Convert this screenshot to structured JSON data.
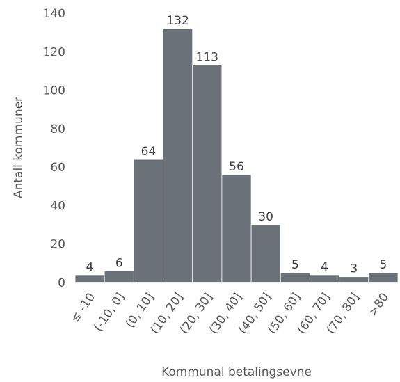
{
  "chart_data": {
    "type": "bar",
    "x_label": "Kommunal betalingsevne",
    "y_label": "Antall kommuner",
    "categories": [
      "≤ -10",
      "(-10, 0]",
      "(0, 10]",
      "(10, 20]",
      "(20, 30]",
      "(30, 40]",
      "(40, 50]",
      "(50, 60]",
      "(60, 70]",
      "(70, 80]",
      ">80"
    ],
    "values": [
      4,
      6,
      64,
      132,
      113,
      56,
      30,
      5,
      4,
      3,
      5
    ],
    "color": "#6b7178",
    "ylim": [
      0,
      140
    ],
    "yticks": [
      0,
      20,
      40,
      60,
      80,
      100,
      120,
      140
    ],
    "grid": false
  }
}
